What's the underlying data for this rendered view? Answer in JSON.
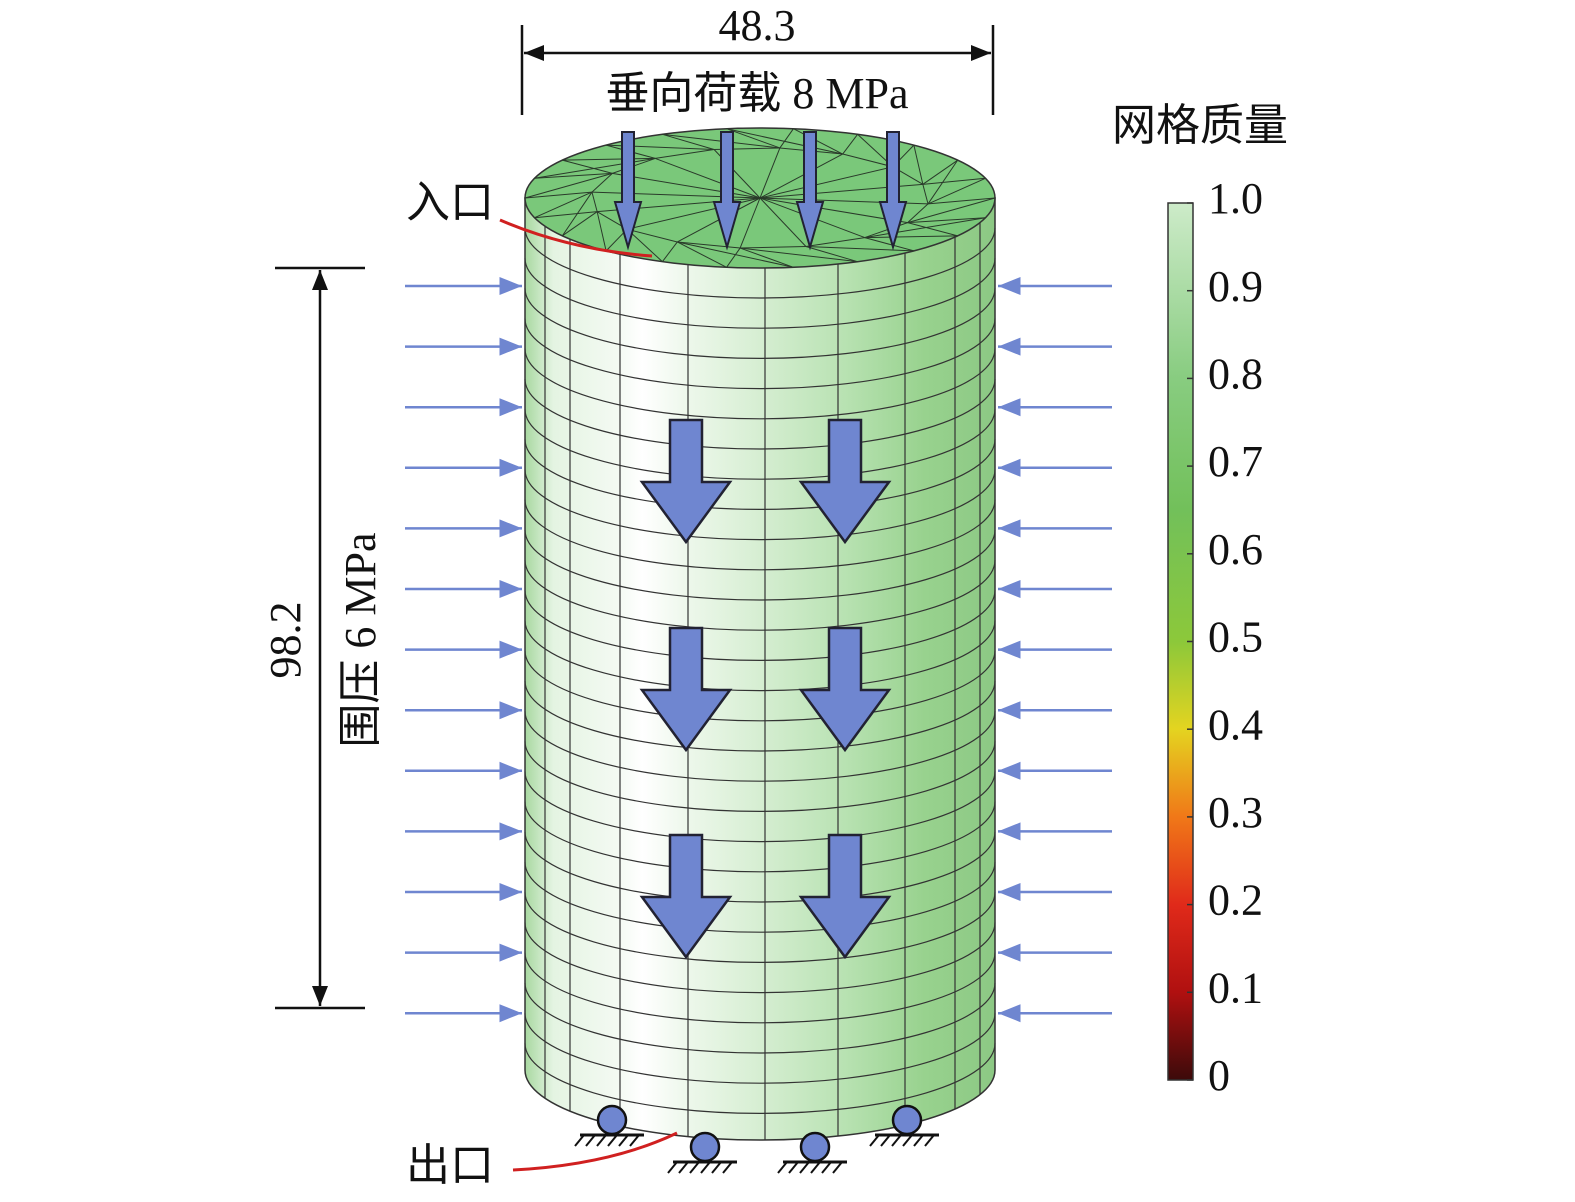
{
  "top_dimension": "48.3",
  "vertical_load": "垂向荷载 8 MPa",
  "inlet": "入口",
  "height_dimension": "98.2",
  "confining_pressure": "围压 6 MPa",
  "outlet": "出口",
  "colorbar": {
    "title": "网格质量",
    "lim": [
      0,
      1
    ],
    "ticks": [
      {
        "value": 1,
        "label": "1.0"
      },
      0.9,
      0.8,
      0.7,
      0.6,
      0.5,
      0.4,
      0.3,
      0.2,
      0.1,
      0
    ]
  }
}
